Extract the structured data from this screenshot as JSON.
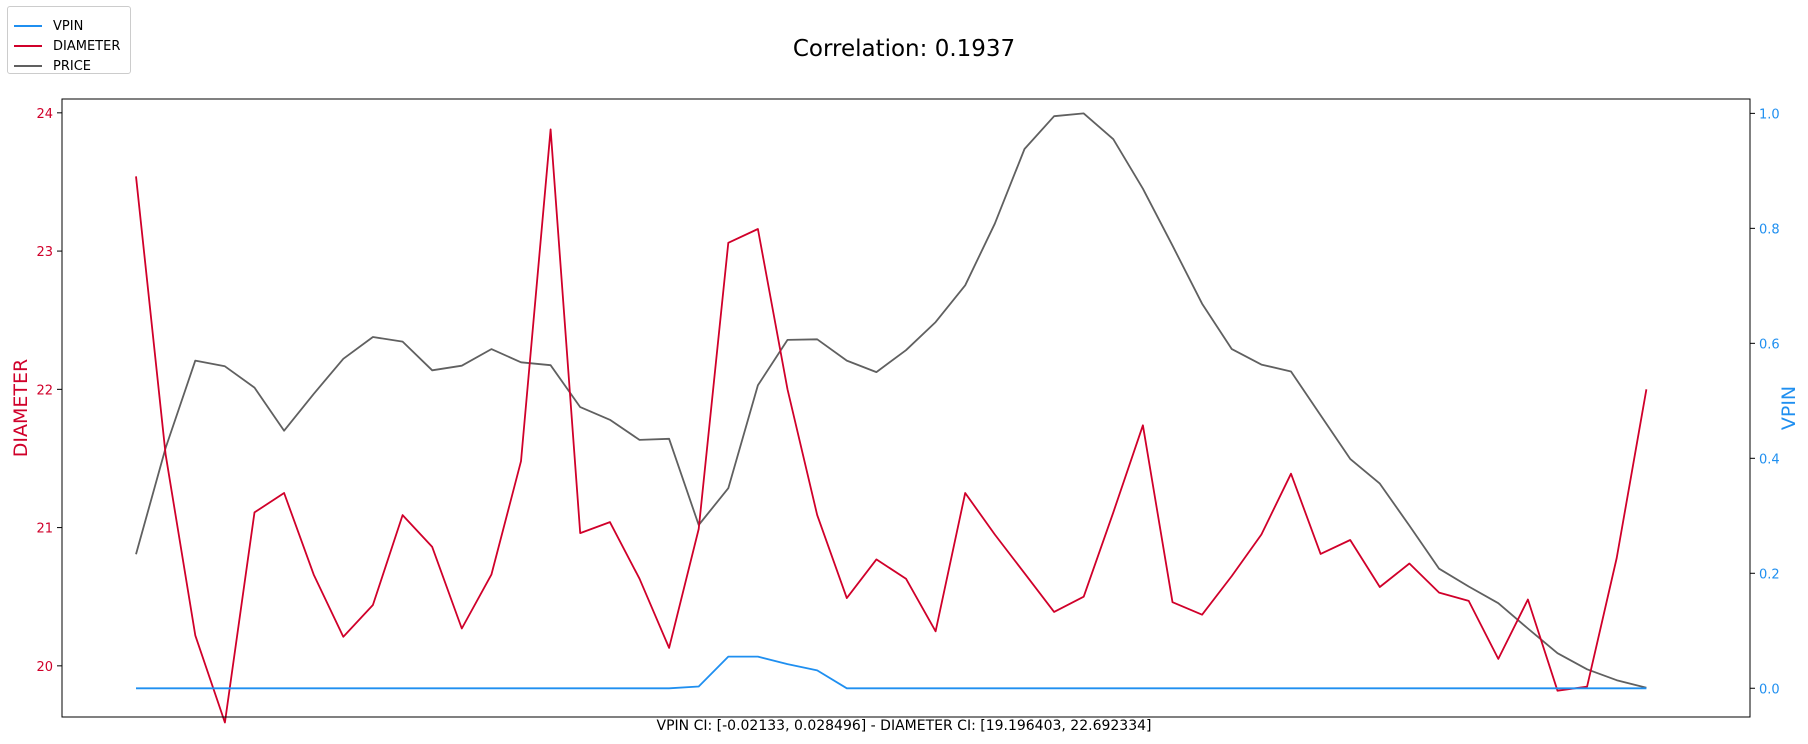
{
  "chart_data": {
    "type": "line",
    "title": "Correlation: 0.1937",
    "xlabel": "VPIN CI: [-0.02133, 0.028496] - DIAMETER CI: [19.196403, 22.692334]",
    "ylabel_left": "DIAMETER",
    "ylabel_right": "VPIN",
    "ylim_left": [
      19.63,
      24.1
    ],
    "ylim_right": [
      -0.05,
      1.025
    ],
    "xlim": [
      -2.5,
      54.5
    ],
    "yticks_left": [
      "20",
      "21",
      "22",
      "23",
      "24"
    ],
    "yticks_right": [
      "0.0",
      "0.2",
      "0.4",
      "0.6",
      "0.8",
      "1.0"
    ],
    "grid": false,
    "legend_position": "top-left",
    "colors": {
      "VPIN": "#1f8ff0",
      "DIAMETER": "#d0002a",
      "PRICE": "#606060"
    },
    "series": [
      {
        "name": "VPIN",
        "axis": "right",
        "values": [
          0,
          0,
          0,
          0,
          0,
          0,
          0,
          0,
          0,
          0,
          0,
          0,
          0,
          0,
          0,
          0,
          0,
          0,
          0,
          0.003,
          0.055,
          0.055,
          0.042,
          0.031,
          0,
          0,
          0,
          0,
          0,
          0,
          0,
          0,
          0,
          0,
          0,
          0,
          0,
          0,
          0,
          0,
          0,
          0,
          0,
          0,
          0,
          0,
          0,
          0,
          0,
          0,
          0,
          0
        ]
      },
      {
        "name": "DIAMETER",
        "axis": "left",
        "values": [
          23.54,
          21.53,
          20.22,
          19.59,
          21.11,
          21.25,
          20.66,
          20.21,
          20.44,
          21.09,
          20.86,
          20.27,
          20.66,
          21.48,
          23.88,
          20.96,
          21.04,
          20.63,
          20.13,
          20.99,
          23.06,
          23.16,
          22.0,
          21.09,
          20.49,
          20.77,
          20.63,
          20.25,
          21.25,
          20.95,
          20.67,
          20.39,
          20.5,
          21.11,
          21.74,
          20.46,
          20.37,
          20.65,
          20.95,
          21.39,
          20.81,
          20.91,
          20.57,
          20.74,
          20.53,
          20.47,
          20.05,
          20.48,
          19.82,
          19.85,
          20.78,
          22.0
        ]
      },
      {
        "name": "PRICE",
        "axis": "right",
        "values": [
          0.233,
          0.418,
          0.57,
          0.56,
          0.523,
          0.448,
          0.512,
          0.573,
          0.611,
          0.603,
          0.553,
          0.561,
          0.59,
          0.567,
          0.562,
          0.489,
          0.467,
          0.432,
          0.434,
          0.284,
          0.348,
          0.527,
          0.606,
          0.607,
          0.57,
          0.55,
          0.588,
          0.637,
          0.701,
          0.808,
          0.938,
          0.995,
          1.0,
          0.955,
          0.869,
          0.77,
          0.669,
          0.59,
          0.563,
          0.551,
          0.475,
          0.399,
          0.356,
          0.283,
          0.208,
          0.177,
          0.148,
          0.104,
          0.061,
          0.033,
          0.014,
          0.001
        ]
      }
    ]
  }
}
